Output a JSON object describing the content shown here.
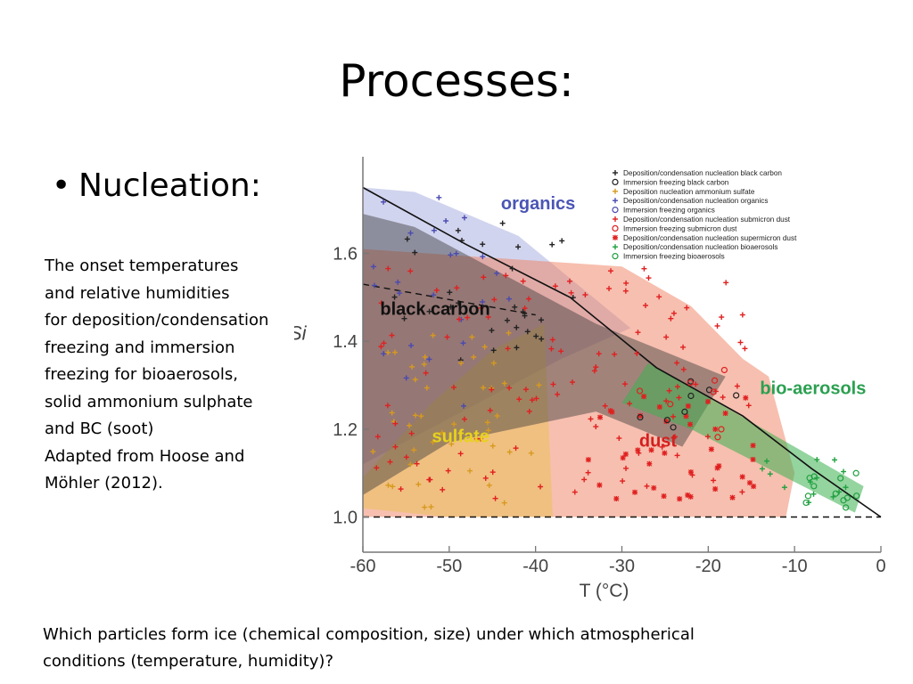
{
  "slide": {
    "title": "Processes:",
    "bullet": "Nucleation:",
    "description_lines": [
      "The onset temperatures",
      "and relative humidities",
      "for deposition/condensation",
      "freezing and immersion",
      "freezing for bioaerosols,",
      "solid ammonium sulphate",
      "and BC (soot)",
      "Adapted from Hoose and",
      "Möhler (2012)."
    ],
    "question_lines": [
      "Which particles form ice (chemical composition, size) under which atmospherical",
      "conditions (temperature, humidity)?"
    ]
  },
  "chart_data": {
    "type": "scatter",
    "title": "",
    "xlabel": "T (°C)",
    "ylabel": "Si",
    "xlim": [
      -60,
      0
    ],
    "ylim": [
      0.92,
      1.82
    ],
    "xticks": [
      -60,
      -50,
      -40,
      -30,
      -20,
      -10,
      0
    ],
    "yticks": [
      1.0,
      1.2,
      1.4,
      1.6
    ],
    "ytick_labels": [
      "1.0",
      "1.2",
      "1.4",
      "1.6"
    ],
    "grid": false,
    "legend_position": "top-right",
    "legend": [
      {
        "label": "Deposition/condensation nucleation black carbon",
        "marker": "plus",
        "color": "#222222"
      },
      {
        "label": "Immersion freezing black carbon",
        "marker": "circle",
        "color": "#222222"
      },
      {
        "label": "Deposition nucleation ammonium sulfate",
        "marker": "plus",
        "color": "#d79a1e"
      },
      {
        "label": "Deposition/condensation nucleation organics",
        "marker": "plus",
        "color": "#4a4ab0"
      },
      {
        "label": "Immersion freezing organics",
        "marker": "circle",
        "color": "#4a4ab0"
      },
      {
        "label": "Deposition/condensation nucleation submicron dust",
        "marker": "plus",
        "color": "#e02020"
      },
      {
        "label": "Immersion freezing submicron dust",
        "marker": "circle",
        "color": "#e02020"
      },
      {
        "label": "Deposition/condensation nucleation supermicron dust",
        "marker": "star",
        "color": "#e02020"
      },
      {
        "label": "Deposition/condensation nucleation bioaerosols",
        "marker": "plus",
        "color": "#20a040"
      },
      {
        "label": "Immersion freezing bioaerosols",
        "marker": "circle",
        "color": "#20a040"
      }
    ],
    "regions": [
      {
        "name": "organics",
        "label_color": "#4a55b5",
        "fill": "#5a63c2",
        "opacity": 0.28,
        "label_at": [
          -44,
          1.7
        ],
        "polygon": [
          [
            -60,
            1.75
          ],
          [
            -54,
            1.74
          ],
          [
            -42,
            1.64
          ],
          [
            -29,
            1.43
          ],
          [
            -37,
            1.36
          ],
          [
            -60,
            1.12
          ]
        ]
      },
      {
        "name": "dust",
        "label_color": "#d41f1f",
        "fill": "#f08060",
        "opacity": 0.5,
        "label_at": [
          -28,
          1.16
        ],
        "polygon": [
          [
            -60,
            1.61
          ],
          [
            -30,
            1.57
          ],
          [
            -22,
            1.48
          ],
          [
            -16,
            1.36
          ],
          [
            -13,
            1.32
          ],
          [
            -10,
            1.1
          ],
          [
            -11,
            1.0
          ],
          [
            -60,
            1.0
          ]
        ]
      },
      {
        "name": "sulfate",
        "label_color": "#e8d21c",
        "fill": "#e6c24a",
        "opacity": 0.45,
        "label_at": [
          -52,
          1.17
        ],
        "polygon": [
          [
            -60,
            1.02
          ],
          [
            -60,
            1.09
          ],
          [
            -52,
            1.26
          ],
          [
            -45,
            1.38
          ],
          [
            -39,
            1.44
          ],
          [
            -38,
            1.0
          ],
          [
            -50,
            1.0
          ]
        ]
      },
      {
        "name": "black carbon",
        "label_color": "#111111",
        "fill": "#3a3a3a",
        "opacity": 0.45,
        "label_at": [
          -58,
          1.46
        ],
        "polygon": [
          [
            -60,
            1.69
          ],
          [
            -54,
            1.66
          ],
          [
            -33,
            1.44
          ],
          [
            -18,
            1.32
          ],
          [
            -23,
            1.16
          ],
          [
            -33,
            1.24
          ],
          [
            -50,
            1.17
          ],
          [
            -60,
            1.05
          ]
        ]
      },
      {
        "name": "bio-aerosols",
        "label_color": "#2aa050",
        "fill": "#3cb050",
        "opacity": 0.55,
        "label_at": [
          -14,
          1.28
        ],
        "polygon": [
          [
            -27,
            1.35
          ],
          [
            -18,
            1.25
          ],
          [
            -2,
            1.07
          ],
          [
            -3,
            1.01
          ],
          [
            -22,
            1.2
          ],
          [
            -30,
            1.26
          ]
        ]
      }
    ],
    "reference_lines": [
      {
        "name": "water saturation",
        "style": "solid",
        "points": [
          [
            -60,
            1.75
          ],
          [
            -48,
            1.62
          ],
          [
            -36,
            1.5
          ],
          [
            -26,
            1.34
          ],
          [
            -16,
            1.23
          ],
          [
            -8,
            1.11
          ],
          [
            0,
            1.0
          ]
        ]
      },
      {
        "name": "ice saturation",
        "style": "dashed",
        "points": [
          [
            -60,
            1.0
          ],
          [
            0,
            1.0
          ]
        ]
      },
      {
        "name": "homogeneous freezing",
        "style": "dashed",
        "points": [
          [
            -60,
            1.53
          ],
          [
            -40,
            1.46
          ]
        ]
      }
    ],
    "clusters": [
      {
        "series": "Deposition/condensation nucleation black carbon",
        "marker": "plus",
        "color": "#222222",
        "n": 30,
        "x": [
          -59,
          -35
        ],
        "y": [
          1.35,
          1.67
        ]
      },
      {
        "series": "Deposition/condensation nucleation organics",
        "marker": "plus",
        "color": "#4a4ab0",
        "n": 24,
        "x": [
          -59,
          -43
        ],
        "y": [
          1.25,
          1.75
        ]
      },
      {
        "series": "Deposition nucleation ammonium sulfate",
        "marker": "plus",
        "color": "#d79a1e",
        "n": 45,
        "x": [
          -59,
          -39
        ],
        "y": [
          1.02,
          1.42
        ]
      },
      {
        "series": "Deposition/condensation nucleation submicron dust",
        "marker": "plus",
        "color": "#e02020",
        "n": 120,
        "x": [
          -59,
          -15
        ],
        "y": [
          1.04,
          1.57
        ]
      },
      {
        "series": "Deposition/condensation nucleation supermicron dust",
        "marker": "star",
        "color": "#e02020",
        "n": 40,
        "x": [
          -34,
          -14
        ],
        "y": [
          1.04,
          1.28
        ]
      },
      {
        "series": "Deposition/condensation nucleation bioaerosols",
        "marker": "plus",
        "color": "#20a040",
        "n": 14,
        "x": [
          -15,
          -3
        ],
        "y": [
          1.03,
          1.15
        ]
      },
      {
        "series": "Immersion freezing bioaerosols",
        "marker": "circle",
        "color": "#20a040",
        "n": 12,
        "x": [
          -10,
          -2
        ],
        "y": [
          1.02,
          1.1
        ]
      },
      {
        "series": "Immersion freezing black carbon",
        "marker": "circle",
        "color": "#222222",
        "n": 8,
        "x": [
          -28,
          -16
        ],
        "y": [
          1.19,
          1.31
        ]
      },
      {
        "series": "Immersion freezing submicron dust",
        "marker": "circle",
        "color": "#e02020",
        "n": 8,
        "x": [
          -30,
          -18
        ],
        "y": [
          1.18,
          1.34
        ]
      }
    ]
  }
}
